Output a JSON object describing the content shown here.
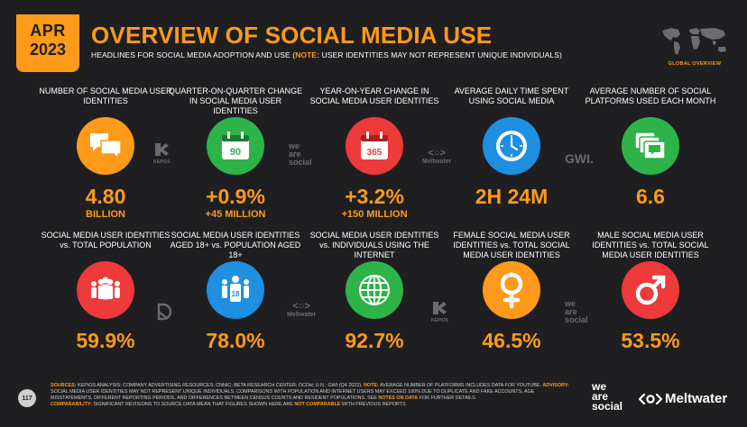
{
  "header": {
    "month": "APR",
    "year": "2023",
    "title": "OVERVIEW OF SOCIAL MEDIA USE",
    "subtitle_main": "HEADLINES FOR SOCIAL MEDIA ADOPTION AND USE (",
    "subtitle_note_label": "NOTE:",
    "subtitle_note": " USER IDENTITIES MAY NOT REPRESENT UNIQUE INDIVIDUALS)",
    "map_label": "GLOBAL OVERVIEW"
  },
  "row1": [
    {
      "label": "NUMBER OF SOCIAL MEDIA USER IDENTITIES",
      "value": "4.80",
      "sub": "BILLION",
      "icon": "speech-bubbles-icon",
      "color": "#ff9a1a"
    },
    {
      "label": "QUARTER-ON-QUARTER CHANGE IN SOCIAL MEDIA USER IDENTITIES",
      "value": "+0.9%",
      "sub": "+45 MILLION",
      "icon": "calendar-90-icon",
      "icon_text": "90",
      "color": "#2eb34a"
    },
    {
      "label": "YEAR-ON-YEAR CHANGE IN SOCIAL MEDIA USER IDENTITIES",
      "value": "+3.2%",
      "sub": "+150 MILLION",
      "icon": "calendar-365-icon",
      "icon_text": "365",
      "color": "#ee3a3a"
    },
    {
      "label": "AVERAGE DAILY TIME SPENT USING SOCIAL MEDIA",
      "value": "2H 24M",
      "sub": "",
      "icon": "clock-icon",
      "color": "#1e8fe1"
    },
    {
      "label": "AVERAGE NUMBER OF SOCIAL PLATFORMS USED EACH MONTH",
      "value": "6.6",
      "sub": "",
      "icon": "stacked-windows-icon",
      "color": "#2eb34a"
    }
  ],
  "row2": [
    {
      "label": "SOCIAL MEDIA USER IDENTITIES vs. TOTAL POPULATION",
      "value": "59.9%",
      "icon": "crowd-icon",
      "color": "#ee3a3a"
    },
    {
      "label": "SOCIAL MEDIA USER IDENTITIES AGED 18+ vs. POPULATION AGED 18+",
      "value": "78.0%",
      "icon": "adults-18-icon",
      "icon_text": "18",
      "color": "#1e8fe1"
    },
    {
      "label": "SOCIAL MEDIA USER IDENTITIES vs. INDIVIDUALS USING THE INTERNET",
      "value": "92.7%",
      "icon": "globe-icon",
      "color": "#2eb34a"
    },
    {
      "label": "FEMALE SOCIAL MEDIA USER IDENTITIES vs. TOTAL SOCIAL MEDIA USER IDENTITIES",
      "value": "46.5%",
      "icon": "female-symbol-icon",
      "color": "#ff9a1a"
    },
    {
      "label": "MALE SOCIAL MEDIA USER IDENTITIES vs. TOTAL SOCIAL MEDIA USER IDENTITIES",
      "value": "53.5%",
      "icon": "male-symbol-icon",
      "color": "#ee3a3a"
    }
  ],
  "partners": {
    "kepios": "KEPIOS",
    "was_1": "we",
    "was_2": "are",
    "was_3": "social",
    "meltwater": "Meltwater",
    "gwi": "GWI."
  },
  "footer": {
    "sources_label": "SOURCES:",
    "sources": " KEPIOS ANALYSIS; COMPANY ADVERTISING RESOURCES; CNNIC; BETA RESEARCH CENTER; OCDH; U.N.; GWI (Q4 2022). ",
    "note_label": "NOTE:",
    "note": " AVERAGE NUMBER OF PLATFORMS INCLUDES DATA FOR YOUTUBE. ",
    "advisory_label": "ADVISORY:",
    "advisory": " SOCIAL MEDIA USER IDENTITIES MAY NOT REPRESENT UNIQUE INDIVIDUALS. COMPARISONS WITH POPULATION AND INTERNET USERS MAY EXCEED 100% DUE TO DUPLICATE AND FAKE ACCOUNTS, AGE MISSTATEMENTS, DIFFERENT REPORTING PERIODS, AND DIFFERENCES BETWEEN CENSUS COUNTS AND RESIDENT POPULATIONS. SEE ",
    "notes_link": "NOTES ON DATA",
    "advisory_end": " FOR FURTHER DETAILS.",
    "comparability_label": "COMPARABILITY:",
    "comparability": " SIGNIFICANT REVISIONS TO SOURCE DATA MEAN THAT FIGURES SHOWN HERE ARE ",
    "not_comparable": "NOT COMPARABLE",
    "comparability_end": " WITH PREVIOUS REPORTS.",
    "page_number": "117"
  },
  "logos": {
    "was_1": "we",
    "was_2": "are",
    "was_3": "social",
    "meltwater": "Meltwater"
  }
}
